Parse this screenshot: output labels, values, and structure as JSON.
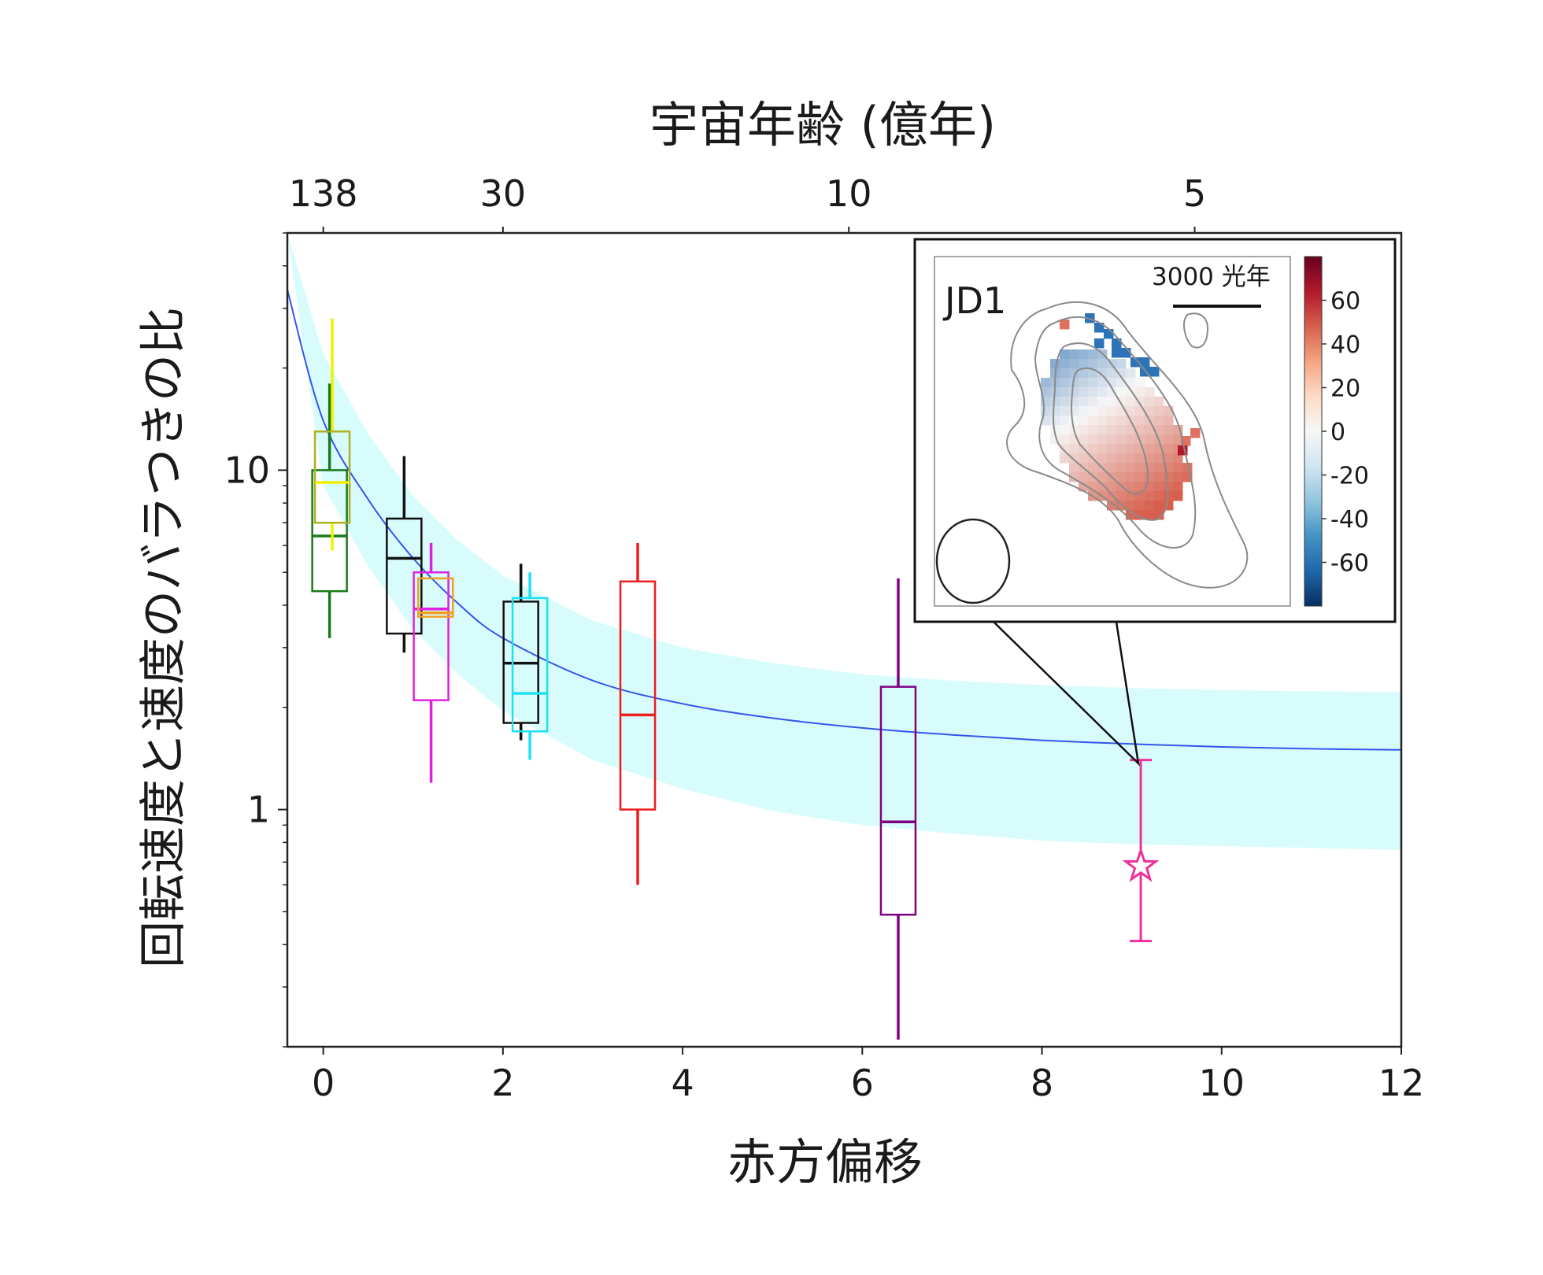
{
  "chart_data": {
    "type": "box",
    "xlabel": "赤方偏移",
    "ylabel": "回転速度と速度のバラつきの比",
    "top_axis_label": "宇宙年齢 (億年)",
    "y_scale": "log",
    "xlim": [
      -0.4,
      12
    ],
    "ylim": [
      0.2,
      50
    ],
    "x_ticks": [
      0,
      2,
      4,
      6,
      8,
      10,
      12
    ],
    "x_tick_labels": [
      "0",
      "2",
      "4",
      "6",
      "8",
      "10",
      "12"
    ],
    "y_ticks": [
      1,
      10
    ],
    "y_tick_labels": [
      "1",
      "10"
    ],
    "top_ticks": [
      {
        "label": "138",
        "z": 0
      },
      {
        "label": "30",
        "z": 2
      },
      {
        "label": "10",
        "z": 5.85
      },
      {
        "label": "5",
        "z": 9.7
      }
    ],
    "boxes": [
      {
        "z": 0.07,
        "color": "#1a7a1a",
        "whisker_low": 3.2,
        "q1": 4.4,
        "median": 6.4,
        "q3": 10,
        "whisker_high": 18
      },
      {
        "z": 0.1,
        "color": "#b0b020",
        "whisker_low": 5.8,
        "q1": 7,
        "median": 9.2,
        "q3": 13,
        "whisker_high": 28,
        "whisker_color": "#f0f000"
      },
      {
        "z": 0.9,
        "color": "#111111",
        "whisker_low": 2.9,
        "q1": 3.3,
        "median": 5.5,
        "q3": 7.2,
        "whisker_high": 11
      },
      {
        "z": 1.2,
        "color": "#e020e0",
        "whisker_low": 1.2,
        "q1": 2.1,
        "median": 3.9,
        "q3": 5,
        "whisker_high": 6.1
      },
      {
        "z": 1.25,
        "color": "#f0a020",
        "whisker_low": 3.7,
        "q1": 3.7,
        "median": 3.8,
        "q3": 4.8,
        "whisker_high": 4.8
      },
      {
        "z": 2.2,
        "color": "#111111",
        "whisker_low": 1.6,
        "q1": 1.8,
        "median": 2.7,
        "q3": 4.1,
        "whisker_high": 5.3
      },
      {
        "z": 2.3,
        "color": "#20e0f0",
        "whisker_low": 1.4,
        "q1": 1.7,
        "median": 2.2,
        "q3": 4.2,
        "whisker_high": 5
      },
      {
        "z": 3.5,
        "color": "#ee1c1c",
        "whisker_low": 0.6,
        "q1": 1,
        "median": 1.9,
        "q3": 4.7,
        "whisker_high": 6.1
      },
      {
        "z": 6.4,
        "color": "#800080",
        "whisker_low": 0.21,
        "q1": 0.49,
        "median": 0.92,
        "q3": 2.3,
        "whisker_high": 4.8
      }
    ],
    "jd1_point": {
      "z": 9.1,
      "value": 0.68,
      "err_low": 0.41,
      "err_high": 1.4,
      "color": "#f0309a",
      "marker": "star"
    },
    "model_curve": {
      "color": "#3355ee",
      "z": [
        -0.4,
        0,
        0.5,
        1,
        1.5,
        2,
        3,
        4,
        5,
        6,
        7,
        8,
        9,
        10,
        11,
        12
      ],
      "value": [
        34,
        14,
        8.2,
        5.5,
        4.05,
        3.2,
        2.4,
        2.05,
        1.86,
        1.74,
        1.66,
        1.6,
        1.56,
        1.53,
        1.51,
        1.5
      ]
    },
    "model_band": {
      "color": "#d8fcfc",
      "lower": [
        50,
        9.0,
        5.2,
        3.4,
        2.5,
        1.95,
        1.4,
        1.15,
        0.99,
        0.9,
        0.85,
        0.81,
        0.79,
        0.78,
        0.77,
        0.76
      ],
      "upper": [
        50,
        22,
        12.8,
        8.4,
        6.2,
        4.9,
        3.6,
        3.0,
        2.7,
        2.5,
        2.4,
        2.33,
        2.28,
        2.25,
        2.23,
        2.22
      ]
    }
  },
  "inset": {
    "label": "JD1",
    "scale_label": "3000 光年",
    "colorbar": {
      "ticks": [
        "60",
        "40",
        "20",
        "0",
        "-20",
        "-40",
        "-60"
      ],
      "colors": [
        "#67001f",
        "#b2182b",
        "#d6604d",
        "#f4a582",
        "#fddbc7",
        "#f7f7f7",
        "#d1e5f0",
        "#92c5de",
        "#4393c3",
        "#2166ac",
        "#053061"
      ]
    }
  }
}
